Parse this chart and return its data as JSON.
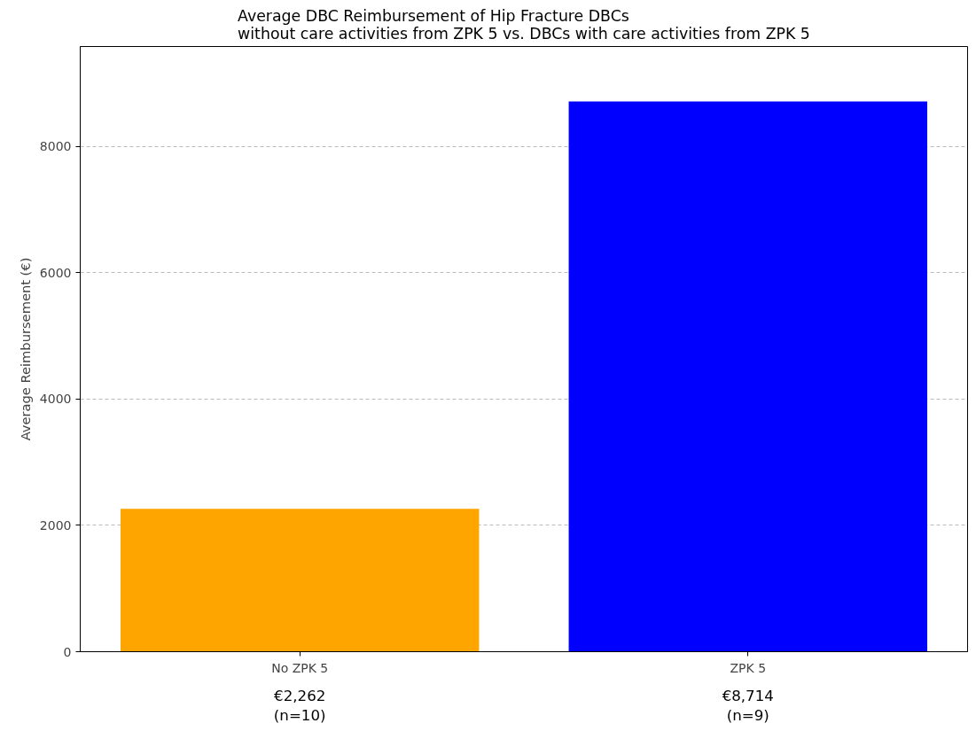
{
  "chart_data": {
    "type": "bar",
    "title": "Average DBC Reimbursement of Hip Fracture DBCs\nwithout care activities from ZPK 5 vs. DBCs with care activities from ZPK 5",
    "ylabel": "Average Reimbursement (€)",
    "categories": [
      "No ZPK 5",
      "ZPK 5"
    ],
    "values": [
      2262,
      8714
    ],
    "colors": [
      "#ffa500",
      "#0000ff"
    ],
    "value_labels": [
      "€2,262\n(n=10)",
      "€8,714\n(n=9)"
    ],
    "ylim": [
      0,
      9585
    ],
    "yticks": [
      0,
      2000,
      4000,
      6000,
      8000
    ],
    "grid": "y"
  }
}
